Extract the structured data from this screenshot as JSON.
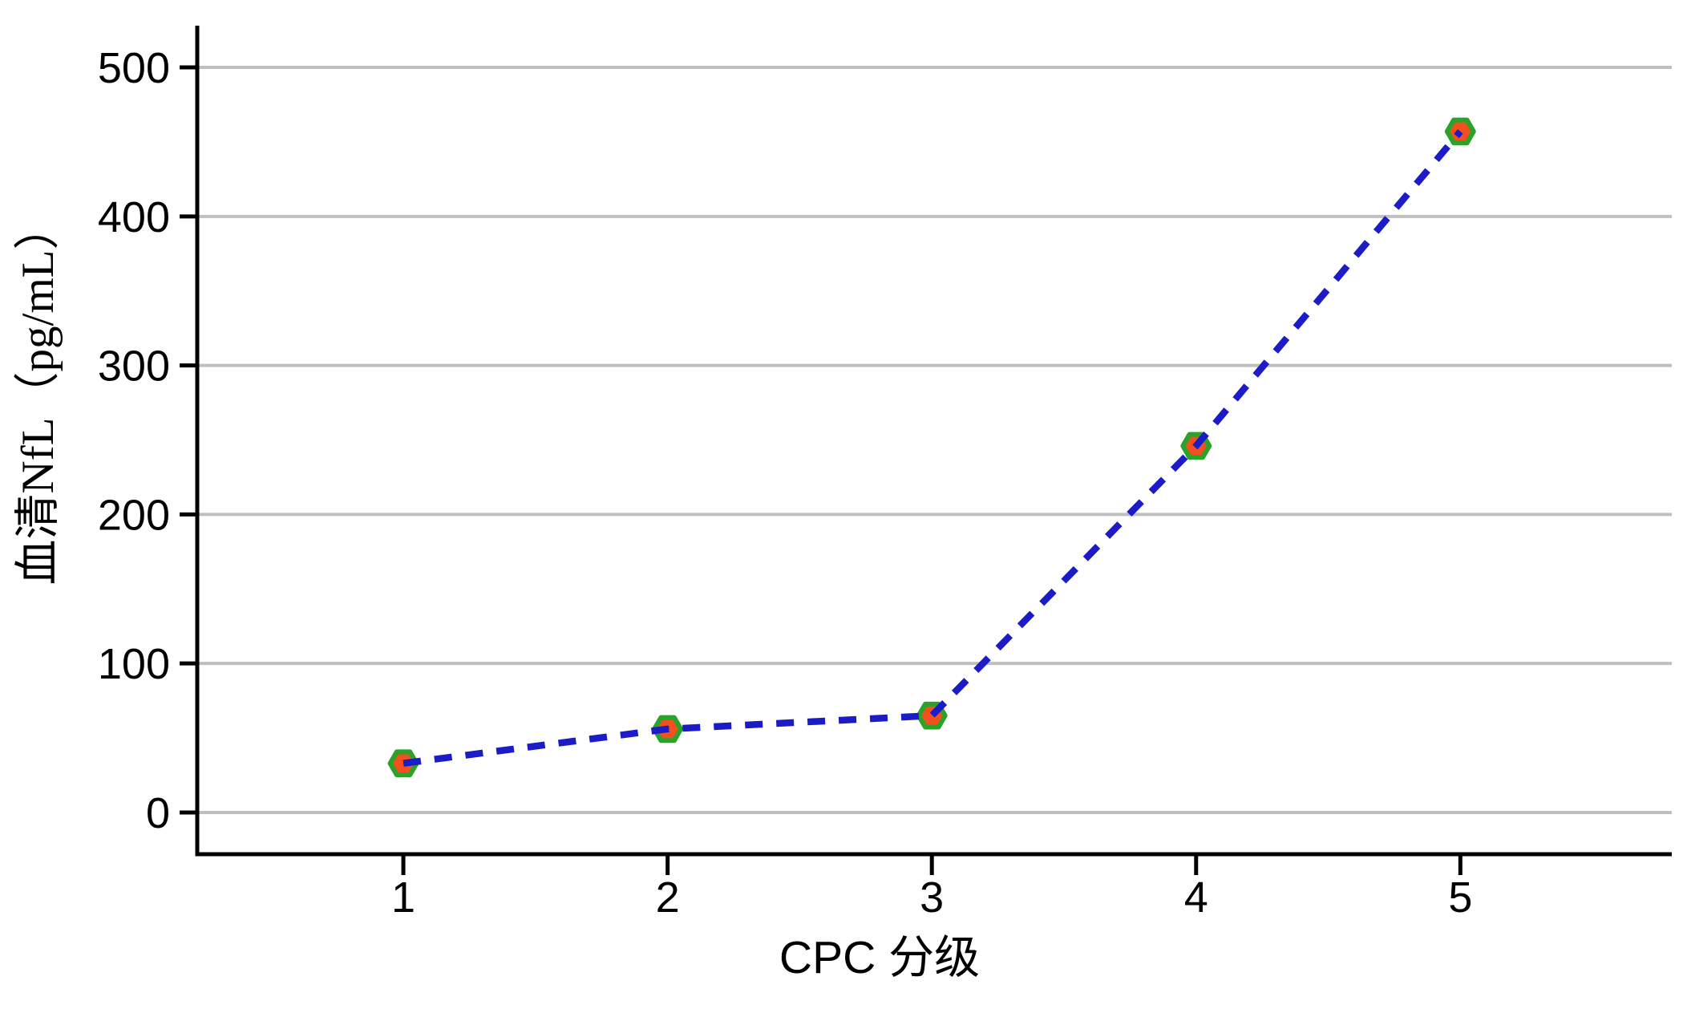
{
  "chart_data": {
    "type": "line",
    "title": "",
    "xlabel": "CPC 分级",
    "ylabel": "血清NfL（pg/mL）",
    "x": [
      1,
      2,
      3,
      4,
      5
    ],
    "x_tick_labels": [
      "1",
      "2",
      "3",
      "4",
      "5"
    ],
    "y_ticks": [
      0,
      100,
      200,
      300,
      400,
      500
    ],
    "y_tick_labels": [
      "0",
      "100",
      "200",
      "300",
      "400",
      "500"
    ],
    "xlim": [
      0.22,
      5.8
    ],
    "ylim": [
      -28,
      528
    ],
    "grid": "horizontal-only",
    "legend": "none",
    "series": [
      {
        "name": "血清NfL",
        "line_style": "dashed",
        "marker": "hexagon",
        "values": [
          33,
          56,
          65,
          246,
          457
        ]
      }
    ],
    "colors": {
      "line": "#1B1BC7",
      "marker_fill": "#F3501F",
      "marker_border": "#2AA32A",
      "grid": "#BFBFBF",
      "axis": "#000000",
      "text": "#000000",
      "background": "#FFFFFF"
    }
  }
}
